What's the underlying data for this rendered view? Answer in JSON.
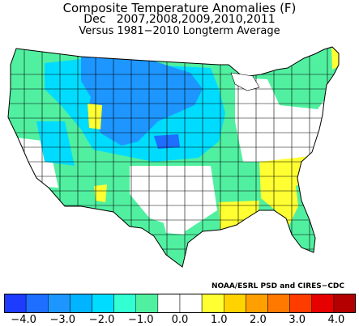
{
  "title": {
    "line1": "Composite Temperature Anomalies (F)",
    "line2": "Dec   2007,2008,2009,2010,2011",
    "line3": "Versus 1981−2010 Longterm Average"
  },
  "credit": "NOAA/ESRL PSD and CIRES−CDC",
  "colorbar": {
    "colors": [
      "#1e3cff",
      "#1e6eff",
      "#1e96ff",
      "#00b4ff",
      "#00dcff",
      "#32ffd2",
      "#50f0a0",
      "#ffffff",
      "#ffffff",
      "#ffff32",
      "#ffd200",
      "#ffa000",
      "#ff7800",
      "#ff3c00",
      "#e60000",
      "#b40000"
    ],
    "tick_labels": [
      "−4.0",
      "−3.0",
      "−2.0",
      "−1.0",
      "0.0",
      "1.0",
      "2.0",
      "3.0",
      "4.0"
    ],
    "tick_values": [
      -4,
      -3,
      -2,
      -1,
      0,
      1,
      2,
      3,
      4
    ],
    "range": [
      -4.5,
      4.5
    ]
  },
  "map_legend": {
    "region": "Contiguous United States climate divisions",
    "fill_colors": {
      "strong_cold": "#1e96ff",
      "moderate_cold": "#00dcff",
      "slight_cold": "#50f0a0",
      "near_normal": "#ffffff",
      "slight_warm": "#ffff32",
      "dark_core": "#1e6eff"
    }
  }
}
